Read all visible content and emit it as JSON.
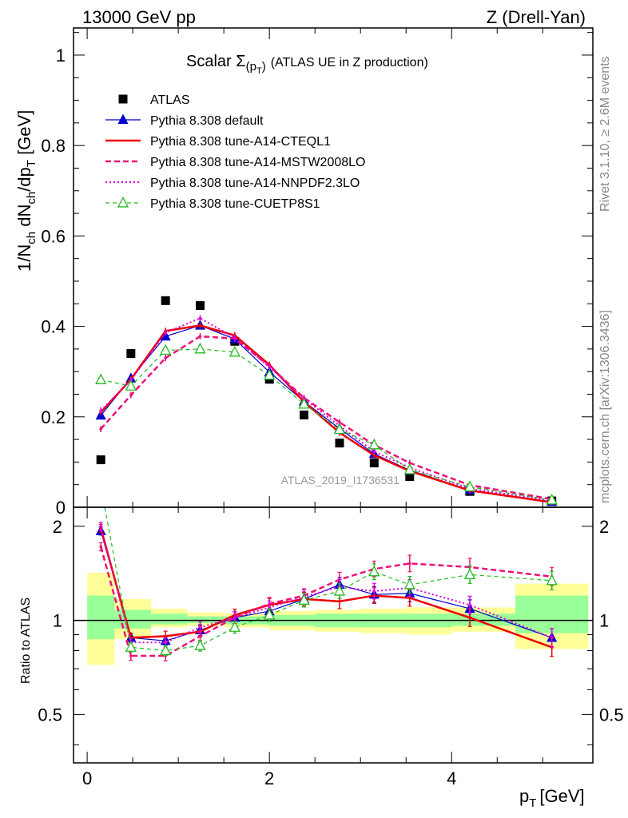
{
  "header": {
    "left": "13000 GeV pp",
    "right": "Z (Drell-Yan)"
  },
  "side_labels": {
    "rivet": "Rivet 3.1.10, ≥ 2.6M events",
    "mcplots": "mcplots.cern.ch [arXiv:1306.3436]"
  },
  "chart_data": {
    "type": "line",
    "title_main": "Scalar Σ",
    "title_sub": "(p",
    "title_subsub": "T",
    "title_close": ")",
    "title_rest": "(ATLAS UE in Z production)",
    "analysis_label": "ATLAS_2019_I1736531",
    "xlabel": "p",
    "xlabel_sub": "T",
    "xlabel_unit": "[GeV]",
    "ylabel": "1/N",
    "ylabel_parts": [
      "1/N",
      "ch",
      " dN",
      "ch",
      "/dp",
      "T",
      " [GeV]"
    ],
    "ratio_ylabel": "Ratio to ATLAS",
    "xlim": [
      -0.15,
      5.55
    ],
    "ylim": [
      0,
      1.06
    ],
    "ratio_ylim": [
      0.35,
      2.3
    ],
    "x_ticks": [
      "0",
      "2",
      "4"
    ],
    "x_tick_values": [
      0,
      2,
      4
    ],
    "y_ticks": [
      "0",
      "0.2",
      "0.4",
      "0.6",
      "0.8",
      "1"
    ],
    "y_tick_values": [
      0,
      0.2,
      0.4,
      0.6,
      0.8,
      1.0
    ],
    "ratio_ticks": [
      "0.5",
      "1",
      "2"
    ],
    "ratio_tick_values": [
      0.5,
      1,
      2
    ],
    "legend_position": "top-left",
    "x": [
      0.15,
      0.48,
      0.86,
      1.24,
      1.62,
      2.0,
      2.38,
      2.77,
      3.15,
      3.54,
      4.2,
      5.1
    ],
    "bands": {
      "edges": [
        0,
        0.3,
        0.7,
        1.1,
        1.5,
        2.0,
        2.5,
        3.0,
        3.5,
        4.0,
        4.7,
        5.5
      ],
      "yellow_lo": [
        0.72,
        0.87,
        0.95,
        0.96,
        0.95,
        0.93,
        0.92,
        0.91,
        0.9,
        0.92,
        0.81
      ],
      "yellow_hi": [
        1.42,
        1.17,
        1.09,
        1.06,
        1.05,
        1.07,
        1.08,
        1.09,
        1.1,
        1.1,
        1.31
      ],
      "green_lo": [
        0.87,
        0.94,
        0.97,
        0.98,
        0.97,
        0.96,
        0.95,
        0.95,
        0.95,
        0.96,
        0.91
      ],
      "green_hi": [
        1.2,
        1.08,
        1.05,
        1.03,
        1.03,
        1.04,
        1.05,
        1.05,
        1.05,
        1.05,
        1.2
      ]
    },
    "series": [
      {
        "name": "ATLAS",
        "style": "data",
        "color": "#000000",
        "values": [
          0.105,
          0.34,
          0.457,
          0.446,
          0.367,
          0.283,
          0.204,
          0.142,
          0.098,
          0.068,
          0.035,
          0.014
        ],
        "ratio": [
          1,
          1,
          1,
          1,
          1,
          1,
          1,
          1,
          1,
          1,
          1,
          1
        ]
      },
      {
        "name": "Pythia 8.308 default",
        "style": "solid-triangle",
        "color": "#0000cc",
        "values": [
          0.203,
          0.285,
          0.378,
          0.402,
          0.372,
          0.299,
          0.234,
          0.174,
          0.118,
          0.082,
          0.038,
          0.012
        ],
        "ratio": [
          1.93,
          0.88,
          0.86,
          0.93,
          1.02,
          1.07,
          1.17,
          1.3,
          1.21,
          1.22,
          1.09,
          0.88
        ]
      },
      {
        "name": "Pythia 8.308 tune-A14-CTEQL1",
        "style": "solid-thick",
        "color": "#ee0000",
        "values": [
          0.21,
          0.283,
          0.39,
          0.402,
          0.38,
          0.315,
          0.233,
          0.165,
          0.115,
          0.08,
          0.037,
          0.011
        ],
        "ratio": [
          1.97,
          0.88,
          0.89,
          0.92,
          1.04,
          1.12,
          1.17,
          1.15,
          1.2,
          1.18,
          1.02,
          0.82
        ]
      },
      {
        "name": "Pythia 8.308 tune-A14-MSTW2008LO",
        "style": "dashed",
        "color": "#ee1177",
        "values": [
          0.173,
          0.248,
          0.33,
          0.378,
          0.373,
          0.312,
          0.242,
          0.188,
          0.138,
          0.098,
          0.049,
          0.018
        ],
        "ratio": [
          1.72,
          0.77,
          0.77,
          0.89,
          1.02,
          1.13,
          1.2,
          1.35,
          1.46,
          1.52,
          1.48,
          1.38
        ]
      },
      {
        "name": "Pythia 8.308 tune-A14-NNPDF2.3LO",
        "style": "dotted",
        "color": "#dd00dd",
        "values": [
          0.214,
          0.281,
          0.386,
          0.418,
          0.375,
          0.31,
          0.24,
          0.18,
          0.123,
          0.088,
          0.041,
          0.015
        ],
        "ratio": [
          2.0,
          0.85,
          0.85,
          0.95,
          1.02,
          1.1,
          1.19,
          1.28,
          1.24,
          1.27,
          1.12,
          0.88
        ]
      },
      {
        "name": "Pythia 8.308 tune-CUETP8S1",
        "style": "dashed-open-triangle",
        "color": "#22bb22",
        "values": [
          0.282,
          0.268,
          0.347,
          0.35,
          0.343,
          0.292,
          0.228,
          0.172,
          0.138,
          0.083,
          0.045,
          0.016
        ],
        "ratio": [
          2.68,
          0.82,
          0.8,
          0.83,
          0.95,
          1.04,
          1.16,
          1.24,
          1.43,
          1.3,
          1.4,
          1.34
        ]
      }
    ]
  }
}
